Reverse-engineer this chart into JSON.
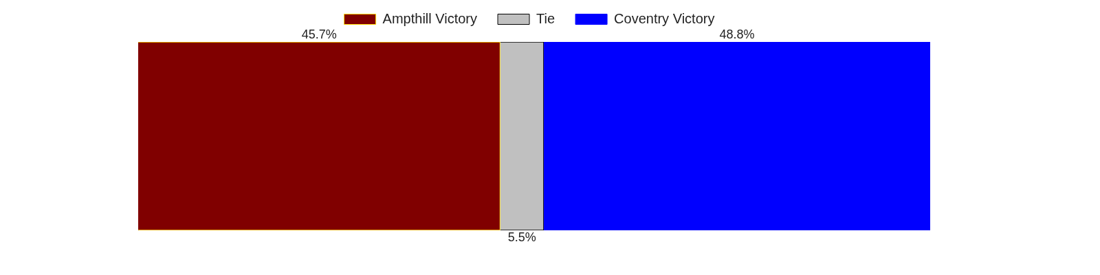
{
  "chart_data": {
    "type": "bar",
    "orientation": "horizontal",
    "stacked": true,
    "categories": [
      null
    ],
    "legend": "top",
    "series": [
      {
        "name": "Ampthill Victory",
        "color": "#800000",
        "values": [
          45.7
        ],
        "value_labels": [
          "45.7%"
        ]
      },
      {
        "name": "Tie",
        "color": "#c0c0c0",
        "values": [
          5.5
        ],
        "value_labels": [
          "5.5%"
        ]
      },
      {
        "name": "Coventry Victory",
        "color": "#0000ff",
        "values": [
          48.8
        ],
        "value_labels": [
          "48.8%"
        ]
      }
    ]
  }
}
